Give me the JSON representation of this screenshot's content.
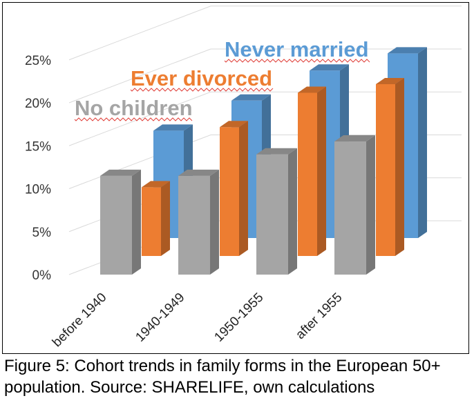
{
  "chart_data": {
    "type": "bar",
    "categories": [
      "before 1940",
      "1940-1949",
      "1950-1955",
      "after 1955"
    ],
    "series": [
      {
        "name": "No children",
        "values": [
          11.5,
          11.5,
          14,
          15.5
        ],
        "color": "#a5a5a5"
      },
      {
        "name": "Ever divorced",
        "values": [
          8,
          15,
          19,
          20
        ],
        "color": "#ed7d31"
      },
      {
        "name": "Never married",
        "values": [
          12.5,
          16,
          19.5,
          21.5
        ],
        "color": "#5b9bd5"
      }
    ],
    "yticks": [
      "0%",
      "5%",
      "10%",
      "15%",
      "20%",
      "25%"
    ],
    "ylim": [
      0,
      25
    ],
    "grid": true
  },
  "caption": "Figure 5: Cohort trends in family forms in the European 50+ population. Source: SHARELIFE, own calculations"
}
